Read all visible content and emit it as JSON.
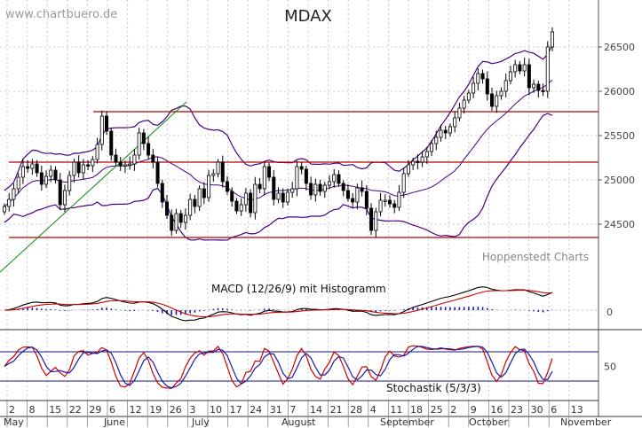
{
  "chart_data": {
    "title": "MDAX",
    "watermark": "www.chartbuero.de",
    "source_label": "Hoppenstedt Charts",
    "type": "candlestick",
    "price_axis": {
      "ylim": [
        24000,
        26900
      ],
      "ticks": [
        24500,
        25000,
        25500,
        26000,
        26500
      ],
      "tick_labels": [
        "24500",
        "25000",
        "25500",
        "26000",
        "26500"
      ]
    },
    "date_axis": {
      "day_labels": [
        "2",
        "8",
        "15",
        "22",
        "29",
        "6",
        "12",
        "19",
        "26",
        "3",
        "10",
        "17",
        "24",
        "31",
        "7",
        "14",
        "21",
        "28",
        "4",
        "11",
        "18",
        "25",
        "2",
        "9",
        "16",
        "23",
        "30",
        "6",
        "13"
      ],
      "month_labels": [
        "May",
        "June",
        "July",
        "August",
        "September",
        "October",
        "November"
      ]
    },
    "price_series": {
      "close": [
        24700,
        24780,
        24900,
        25030,
        25150,
        25130,
        25180,
        25080,
        24950,
        25040,
        25110,
        25000,
        24720,
        24880,
        25050,
        25200,
        25080,
        25170,
        25160,
        25230,
        25400,
        25720,
        25550,
        25280,
        25200,
        25160,
        25170,
        25180,
        25280,
        25530,
        25410,
        25280,
        25200,
        24960,
        24750,
        24600,
        24430,
        24620,
        24520,
        24600,
        24780,
        24700,
        24900,
        24800,
        25050,
        25070,
        25200,
        24980,
        24870,
        24760,
        24650,
        24720,
        24850,
        24630,
        24950,
        24900,
        25150,
        25030,
        24780,
        24850,
        24750,
        24860,
        24900,
        25150,
        25120,
        24960,
        24830,
        24950,
        24870,
        24940,
        24980,
        25060,
        24960,
        24880,
        24790,
        24750,
        24910,
        24870,
        24680,
        24430,
        24640,
        24770,
        24770,
        24730,
        24690,
        24860,
        25070,
        25170,
        25210,
        25200,
        25260,
        25320,
        25410,
        25480,
        25560,
        25530,
        25600,
        25700,
        25810,
        25900,
        25980,
        26090,
        26200,
        26140,
        25970,
        25830,
        25950,
        26000,
        26120,
        26220,
        26300,
        26230,
        26300,
        26040,
        26080,
        26010,
        26000,
        26500,
        26670
      ],
      "horizontal_lines": [
        25770,
        25200,
        24350
      ]
    },
    "macd": {
      "label": "MACD (12/26/9) mit Histogramm",
      "zero_label": "0"
    },
    "stochastic": {
      "label": "Stochastik (5/3/3)",
      "ticks": [
        50
      ],
      "tick_labels": [
        "50"
      ],
      "ylim": [
        0,
        100
      ]
    },
    "colors": {
      "candle": "#000000",
      "bollinger": "#4b0082",
      "horizontal_line": "#b00000",
      "trendline": "#0a8a0a",
      "macd": "#000000",
      "signal": "#cc0000",
      "histogram": "#1a1aa6",
      "stoch_k": "#cc0000",
      "stoch_d": "#1a1aa6",
      "grid": "#c8c8c8"
    },
    "grid": true
  }
}
